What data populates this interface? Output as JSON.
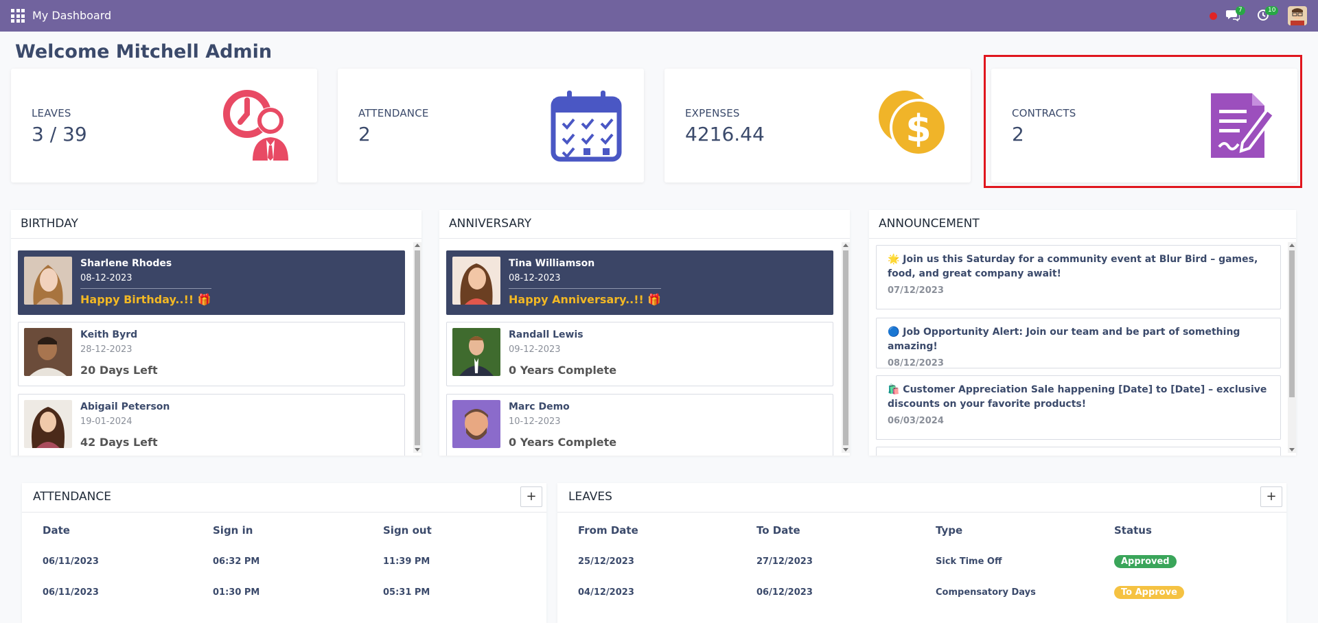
{
  "navbar": {
    "title": "My Dashboard",
    "chat_badge": "7",
    "activity_badge": "10",
    "color": "#71639e"
  },
  "welcome": "Welcome Mitchell Admin",
  "stats": [
    {
      "label": "LEAVES",
      "value": "3 / 39",
      "icon": "leave-clock-person-icon",
      "color": "#e84a64"
    },
    {
      "label": "ATTENDANCE",
      "value": "2",
      "icon": "calendar-check-icon",
      "color": "#4a57c4"
    },
    {
      "label": "EXPENSES",
      "value": "4216.44",
      "icon": "coins-dollar-icon",
      "color": "#f0b429"
    },
    {
      "label": "CONTRACTS",
      "value": "2",
      "icon": "contract-pen-icon",
      "color": "#9c4fbd"
    }
  ],
  "birthday": {
    "title": "BIRTHDAY",
    "items": [
      {
        "name": "Sharlene Rhodes",
        "date": "08-12-2023",
        "note": "Happy Birthday..!! 🎁"
      },
      {
        "name": "Keith Byrd",
        "date": "28-12-2023",
        "note": "20 Days Left"
      },
      {
        "name": "Abigail Peterson",
        "date": "19-01-2024",
        "note": "42 Days Left"
      }
    ]
  },
  "anniversary": {
    "title": "ANNIVERSARY",
    "items": [
      {
        "name": "Tina Williamson",
        "date": "08-12-2023",
        "note": "Happy Anniversary..!! 🎁"
      },
      {
        "name": "Randall Lewis",
        "date": "09-12-2023",
        "note": "0 Years Complete"
      },
      {
        "name": "Marc Demo",
        "date": "10-12-2023",
        "note": "0 Years Complete"
      }
    ]
  },
  "announcement": {
    "title": "ANNOUNCEMENT",
    "items": [
      {
        "text": "🌟 Join us this Saturday for a community event at Blur Bird – games, food, and great company await!",
        "date": "07/12/2023"
      },
      {
        "text": "🔵 Job Opportunity Alert: Join our team and be part of something amazing!",
        "date": "08/12/2023"
      },
      {
        "text": "🛍️ Customer Appreciation Sale happening [Date] to [Date] – exclusive discounts on your favorite products!",
        "date": "06/03/2024"
      }
    ]
  },
  "attendance_table": {
    "title": "ATTENDANCE",
    "plus": "+",
    "headers": [
      "Date",
      "Sign in",
      "Sign out"
    ],
    "rows": [
      [
        "06/11/2023",
        "06:32 PM",
        "11:39 PM"
      ],
      [
        "06/11/2023",
        "01:30 PM",
        "05:31 PM"
      ]
    ]
  },
  "leaves_table": {
    "title": "LEAVES",
    "plus": "+",
    "headers": [
      "From Date",
      "To Date",
      "Type",
      "Status"
    ],
    "rows": [
      {
        "from": "25/12/2023",
        "to": "27/12/2023",
        "type": "Sick Time Off",
        "status": "Approved",
        "status_color": "#3aa55a"
      },
      {
        "from": "04/12/2023",
        "to": "06/12/2023",
        "type": "Compensatory Days",
        "status": "To Approve",
        "status_color": "#f5c242"
      }
    ]
  }
}
